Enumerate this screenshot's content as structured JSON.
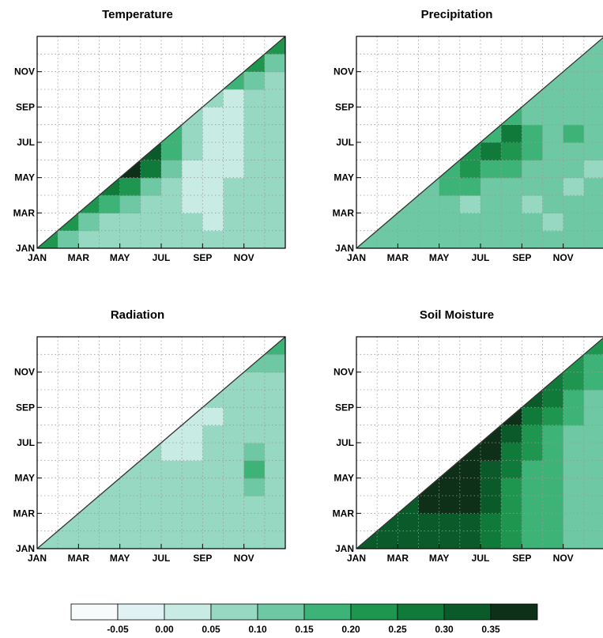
{
  "colorbar": {
    "ticks": [
      "-0.05",
      "0.00",
      "0.05",
      "0.10",
      "0.15",
      "0.20",
      "0.25",
      "0.30",
      "0.35"
    ],
    "colors": [
      "#f7fbfb",
      "#e1f2f4",
      "#c8ebe3",
      "#96d8c2",
      "#6ec8a3",
      "#3db378",
      "#1f9650",
      "#107a3a",
      "#0a5a2a",
      "#0e2f18"
    ]
  },
  "chart_data": [
    {
      "type": "heatmap",
      "title": "Temperature",
      "x_ticks": [
        "JAN",
        "MAR",
        "MAY",
        "JUL",
        "SEP",
        "NOV"
      ],
      "y_ticks": [
        "JAN",
        "MAR",
        "MAY",
        "JUL",
        "SEP",
        "NOV"
      ],
      "grid": true,
      "matrix": [
        [
          0.2,
          0.1,
          0.05,
          0.05,
          0.05,
          0.05,
          0.05,
          0.05,
          0.05,
          0.05,
          0.05,
          0.05
        ],
        [
          null,
          0.2,
          0.1,
          0.05,
          0.05,
          0.05,
          0.05,
          0.05,
          0.0,
          0.05,
          0.05,
          0.05
        ],
        [
          null,
          null,
          0.2,
          0.15,
          0.1,
          0.05,
          0.05,
          0.0,
          0.0,
          0.05,
          0.05,
          0.05
        ],
        [
          null,
          null,
          null,
          0.25,
          0.2,
          0.1,
          0.05,
          0.0,
          0.0,
          0.05,
          0.05,
          0.05
        ],
        [
          null,
          null,
          null,
          null,
          0.35,
          0.25,
          0.1,
          0.0,
          0.0,
          0.0,
          0.05,
          0.05
        ],
        [
          null,
          null,
          null,
          null,
          null,
          0.3,
          0.15,
          0.05,
          0.0,
          0.0,
          0.05,
          0.05
        ],
        [
          null,
          null,
          null,
          null,
          null,
          null,
          0.15,
          0.05,
          0.0,
          0.0,
          0.05,
          0.05
        ],
        [
          null,
          null,
          null,
          null,
          null,
          null,
          null,
          0.05,
          0.0,
          0.0,
          0.05,
          0.05
        ],
        [
          null,
          null,
          null,
          null,
          null,
          null,
          null,
          null,
          0.05,
          0.0,
          0.05,
          0.05
        ],
        [
          null,
          null,
          null,
          null,
          null,
          null,
          null,
          null,
          null,
          0.15,
          0.1,
          0.05
        ],
        [
          null,
          null,
          null,
          null,
          null,
          null,
          null,
          null,
          null,
          null,
          0.2,
          0.1
        ],
        [
          null,
          null,
          null,
          null,
          null,
          null,
          null,
          null,
          null,
          null,
          null,
          0.2
        ]
      ]
    },
    {
      "type": "heatmap",
      "title": "Precipitation",
      "x_ticks": [
        "JAN",
        "MAR",
        "MAY",
        "JUL",
        "SEP",
        "NOV"
      ],
      "y_ticks": [
        "JAN",
        "MAR",
        "MAY",
        "JUL",
        "SEP",
        "NOV"
      ],
      "grid": true,
      "matrix": [
        [
          0.1,
          0.1,
          0.1,
          0.1,
          0.1,
          0.1,
          0.1,
          0.1,
          0.1,
          0.1,
          0.1,
          0.1
        ],
        [
          null,
          0.1,
          0.1,
          0.1,
          0.1,
          0.1,
          0.1,
          0.1,
          0.1,
          0.05,
          0.1,
          0.1
        ],
        [
          null,
          null,
          0.1,
          0.1,
          0.1,
          0.05,
          0.1,
          0.1,
          0.05,
          0.1,
          0.1,
          0.1
        ],
        [
          null,
          null,
          null,
          0.1,
          0.15,
          0.15,
          0.1,
          0.1,
          0.1,
          0.1,
          0.05,
          0.1
        ],
        [
          null,
          null,
          null,
          null,
          0.15,
          0.2,
          0.15,
          0.15,
          0.1,
          0.1,
          0.1,
          0.05
        ],
        [
          null,
          null,
          null,
          null,
          null,
          0.2,
          0.25,
          0.2,
          0.15,
          0.1,
          0.1,
          0.1
        ],
        [
          null,
          null,
          null,
          null,
          null,
          null,
          0.15,
          0.25,
          0.15,
          0.1,
          0.15,
          0.1
        ],
        [
          null,
          null,
          null,
          null,
          null,
          null,
          null,
          0.15,
          0.1,
          0.1,
          0.1,
          0.1
        ],
        [
          null,
          null,
          null,
          null,
          null,
          null,
          null,
          null,
          0.1,
          0.1,
          0.1,
          0.1
        ],
        [
          null,
          null,
          null,
          null,
          null,
          null,
          null,
          null,
          null,
          0.1,
          0.1,
          0.1
        ],
        [
          null,
          null,
          null,
          null,
          null,
          null,
          null,
          null,
          null,
          null,
          0.1,
          0.1
        ],
        [
          null,
          null,
          null,
          null,
          null,
          null,
          null,
          null,
          null,
          null,
          null,
          0.1
        ]
      ]
    },
    {
      "type": "heatmap",
      "title": "Radiation",
      "x_ticks": [
        "JAN",
        "MAR",
        "MAY",
        "JUL",
        "SEP",
        "NOV"
      ],
      "y_ticks": [
        "JAN",
        "MAR",
        "MAY",
        "JUL",
        "SEP",
        "NOV"
      ],
      "grid": true,
      "matrix": [
        [
          0.05,
          0.05,
          0.05,
          0.05,
          0.05,
          0.05,
          0.05,
          0.05,
          0.05,
          0.05,
          0.05,
          0.05
        ],
        [
          null,
          0.05,
          0.05,
          0.05,
          0.05,
          0.05,
          0.05,
          0.05,
          0.05,
          0.05,
          0.05,
          0.05
        ],
        [
          null,
          null,
          0.05,
          0.05,
          0.05,
          0.05,
          0.05,
          0.05,
          0.05,
          0.05,
          0.05,
          0.05
        ],
        [
          null,
          null,
          null,
          0.05,
          0.05,
          0.05,
          0.05,
          0.05,
          0.05,
          0.05,
          0.1,
          0.05
        ],
        [
          null,
          null,
          null,
          null,
          0.05,
          0.05,
          0.05,
          0.05,
          0.05,
          0.05,
          0.15,
          0.05
        ],
        [
          null,
          null,
          null,
          null,
          null,
          0.05,
          0.0,
          0.0,
          0.05,
          0.05,
          0.1,
          0.05
        ],
        [
          null,
          null,
          null,
          null,
          null,
          null,
          0.0,
          0.0,
          0.05,
          0.05,
          0.05,
          0.05
        ],
        [
          null,
          null,
          null,
          null,
          null,
          null,
          null,
          0.0,
          0.0,
          0.05,
          0.05,
          0.05
        ],
        [
          null,
          null,
          null,
          null,
          null,
          null,
          null,
          null,
          0.05,
          0.05,
          0.05,
          0.05
        ],
        [
          null,
          null,
          null,
          null,
          null,
          null,
          null,
          null,
          null,
          0.05,
          0.05,
          0.05
        ],
        [
          null,
          null,
          null,
          null,
          null,
          null,
          null,
          null,
          null,
          null,
          0.1,
          0.1
        ],
        [
          null,
          null,
          null,
          null,
          null,
          null,
          null,
          null,
          null,
          null,
          null,
          0.15
        ]
      ]
    },
    {
      "type": "heatmap",
      "title": "Soil Moisture",
      "x_ticks": [
        "JAN",
        "MAR",
        "MAY",
        "JUL",
        "SEP",
        "NOV"
      ],
      "y_ticks": [
        "JAN",
        "MAR",
        "MAY",
        "JUL",
        "SEP",
        "NOV"
      ],
      "grid": true,
      "matrix": [
        [
          0.3,
          0.3,
          0.3,
          0.3,
          0.3,
          0.3,
          0.25,
          0.2,
          0.15,
          0.15,
          0.1,
          0.1
        ],
        [
          null,
          0.3,
          0.3,
          0.3,
          0.3,
          0.3,
          0.25,
          0.2,
          0.15,
          0.15,
          0.1,
          0.1
        ],
        [
          null,
          null,
          0.3,
          0.35,
          0.35,
          0.35,
          0.3,
          0.2,
          0.15,
          0.15,
          0.1,
          0.1
        ],
        [
          null,
          null,
          null,
          0.35,
          0.35,
          0.35,
          0.3,
          0.2,
          0.15,
          0.15,
          0.1,
          0.1
        ],
        [
          null,
          null,
          null,
          null,
          0.35,
          0.35,
          0.3,
          0.25,
          0.15,
          0.15,
          0.1,
          0.1
        ],
        [
          null,
          null,
          null,
          null,
          null,
          0.35,
          0.35,
          0.25,
          0.2,
          0.15,
          0.1,
          0.1
        ],
        [
          null,
          null,
          null,
          null,
          null,
          null,
          0.35,
          0.3,
          0.2,
          0.15,
          0.1,
          0.1
        ],
        [
          null,
          null,
          null,
          null,
          null,
          null,
          null,
          0.35,
          0.25,
          0.2,
          0.15,
          0.1
        ],
        [
          null,
          null,
          null,
          null,
          null,
          null,
          null,
          null,
          0.3,
          0.25,
          0.15,
          0.1
        ],
        [
          null,
          null,
          null,
          null,
          null,
          null,
          null,
          null,
          null,
          0.25,
          0.2,
          0.15
        ],
        [
          null,
          null,
          null,
          null,
          null,
          null,
          null,
          null,
          null,
          null,
          0.2,
          0.15
        ],
        [
          null,
          null,
          null,
          null,
          null,
          null,
          null,
          null,
          null,
          null,
          null,
          0.2
        ]
      ]
    }
  ]
}
